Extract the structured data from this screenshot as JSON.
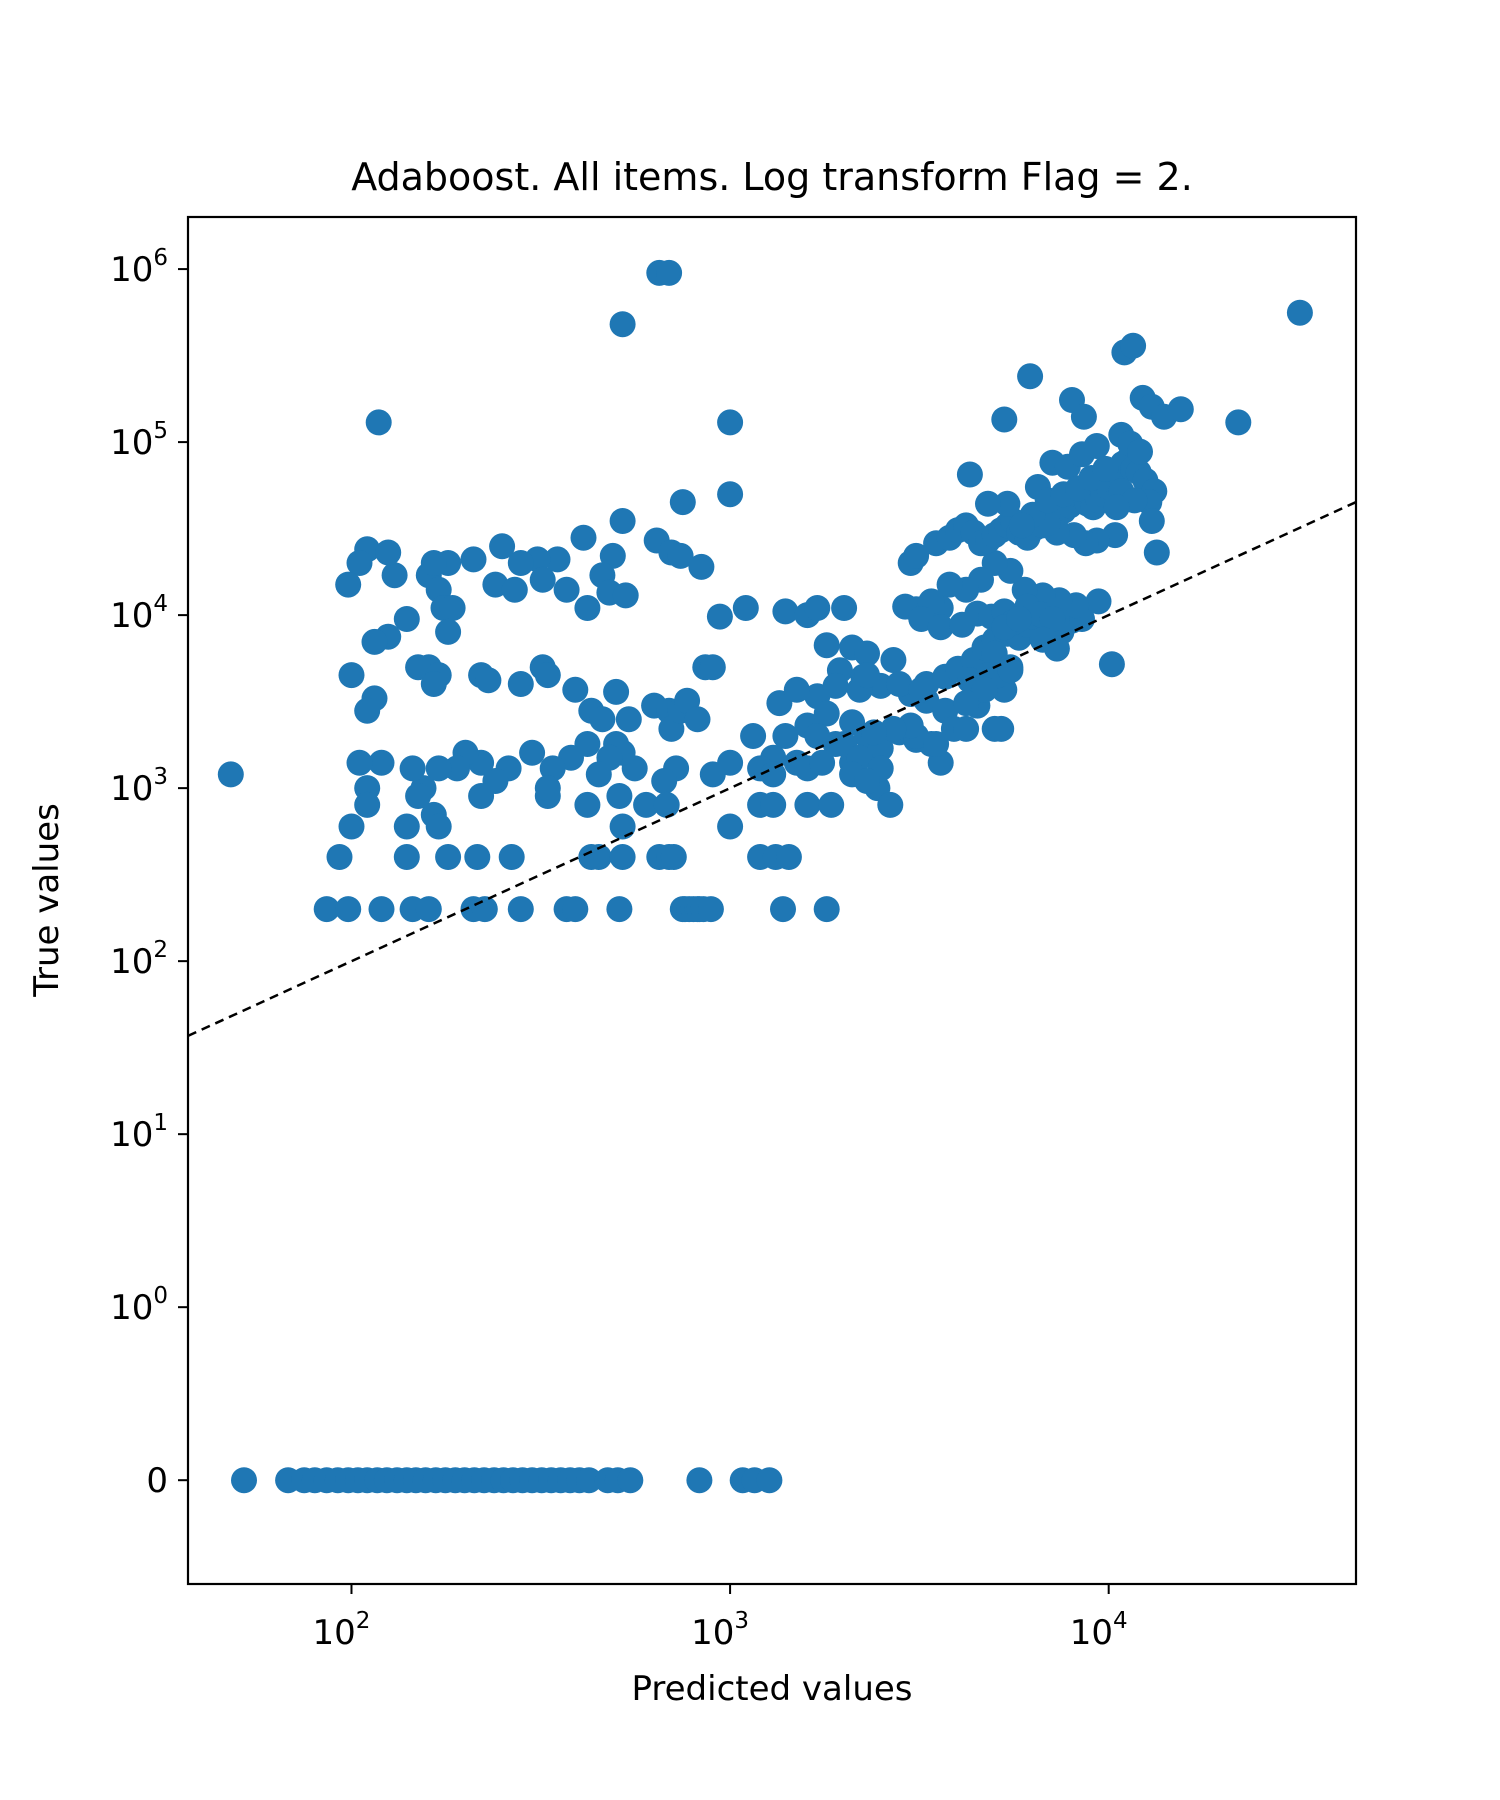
{
  "chart_data": {
    "type": "scatter",
    "title": "Adaboost. All items. Log transform Flag = 2.",
    "xlabel": "Predicted values",
    "ylabel": "True values",
    "xscale": "log",
    "yscale": "symlog",
    "xlim": [
      37,
      45000
    ],
    "ylim": [
      -0.6,
      2000000
    ],
    "xticks": [
      {
        "base": "10",
        "exp": "2",
        "value": 100
      },
      {
        "base": "10",
        "exp": "3",
        "value": 1000
      },
      {
        "base": "10",
        "exp": "4",
        "value": 10000
      }
    ],
    "yticks": [
      {
        "base": "",
        "exp": "",
        "text": "0",
        "value": 0
      },
      {
        "base": "10",
        "exp": "0",
        "value": 1
      },
      {
        "base": "10",
        "exp": "1",
        "value": 10
      },
      {
        "base": "10",
        "exp": "2",
        "value": 100
      },
      {
        "base": "10",
        "exp": "3",
        "value": 1000
      },
      {
        "base": "10",
        "exp": "4",
        "value": 10000
      },
      {
        "base": "10",
        "exp": "5",
        "value": 100000
      },
      {
        "base": "10",
        "exp": "6",
        "value": 1000000
      }
    ],
    "grid": false,
    "marker_color": "#1f77b4",
    "reference_line": {
      "style": "dashed",
      "color": "#000000",
      "description": "y = x"
    },
    "points": [
      [
        48,
        1200
      ],
      [
        118,
        130000
      ],
      [
        520,
        480000
      ],
      [
        650,
        950000
      ],
      [
        690,
        950000
      ],
      [
        1000,
        130000
      ],
      [
        520,
        35000
      ],
      [
        1000,
        50000
      ],
      [
        750,
        45000
      ],
      [
        640,
        27000
      ],
      [
        700,
        23000
      ],
      [
        740,
        22000
      ],
      [
        840,
        19000
      ],
      [
        410,
        28000
      ],
      [
        490,
        22000
      ],
      [
        460,
        17000
      ],
      [
        480,
        13500
      ],
      [
        530,
        13000
      ],
      [
        350,
        21000
      ],
      [
        310,
        21000
      ],
      [
        370,
        14000
      ],
      [
        420,
        11000
      ],
      [
        250,
        25000
      ],
      [
        280,
        20000
      ],
      [
        320,
        16000
      ],
      [
        240,
        15000
      ],
      [
        270,
        14000
      ],
      [
        210,
        21000
      ],
      [
        180,
        20000
      ],
      [
        160,
        17000
      ],
      [
        130,
        17000
      ],
      [
        110,
        24000
      ],
      [
        125,
        23000
      ],
      [
        105,
        20000
      ],
      [
        98,
        15000
      ],
      [
        165,
        20000
      ],
      [
        170,
        14000
      ],
      [
        175,
        11000
      ],
      [
        185,
        11000
      ],
      [
        140,
        9500
      ],
      [
        125,
        7500
      ],
      [
        115,
        7000
      ],
      [
        180,
        8000
      ],
      [
        160,
        5000
      ],
      [
        150,
        5000
      ],
      [
        170,
        4500
      ],
      [
        165,
        4000
      ],
      [
        100,
        4500
      ],
      [
        115,
        3300
      ],
      [
        110,
        2800
      ],
      [
        220,
        4500
      ],
      [
        230,
        4200
      ],
      [
        320,
        5000
      ],
      [
        330,
        4500
      ],
      [
        280,
        4000
      ],
      [
        390,
        3700
      ],
      [
        430,
        2800
      ],
      [
        460,
        2500
      ],
      [
        500,
        3600
      ],
      [
        540,
        2500
      ],
      [
        630,
        3000
      ],
      [
        690,
        2800
      ],
      [
        700,
        2200
      ],
      [
        740,
        2800
      ],
      [
        770,
        3200
      ],
      [
        820,
        2500
      ],
      [
        860,
        5000
      ],
      [
        900,
        5000
      ],
      [
        940,
        9800
      ],
      [
        1100,
        11000
      ],
      [
        1400,
        10500
      ],
      [
        1600,
        10000
      ],
      [
        1700,
        11000
      ],
      [
        2000,
        11000
      ],
      [
        1800,
        6700
      ],
      [
        2100,
        6500
      ],
      [
        2300,
        6000
      ],
      [
        2700,
        5500
      ],
      [
        1950,
        4800
      ],
      [
        2250,
        4400
      ],
      [
        2500,
        3900
      ],
      [
        1700,
        3400
      ],
      [
        1900,
        3900
      ],
      [
        2200,
        3700
      ],
      [
        2100,
        2400
      ],
      [
        2300,
        2000
      ],
      [
        2500,
        1700
      ],
      [
        2800,
        2100
      ],
      [
        3100,
        1900
      ],
      [
        3400,
        1800
      ],
      [
        1350,
        3100
      ],
      [
        1500,
        3700
      ],
      [
        1600,
        2300
      ],
      [
        1800,
        2700
      ],
      [
        1400,
        2000
      ],
      [
        1300,
        1500
      ],
      [
        1500,
        1400
      ],
      [
        1700,
        2000
      ],
      [
        1900,
        1800
      ],
      [
        2100,
        1400
      ],
      [
        1150,
        2000
      ],
      [
        1200,
        1300
      ],
      [
        1000,
        1400
      ],
      [
        900,
        1200
      ],
      [
        720,
        1300
      ],
      [
        670,
        1100
      ],
      [
        560,
        1300
      ],
      [
        520,
        1600
      ],
      [
        500,
        1800
      ],
      [
        480,
        1500
      ],
      [
        450,
        1200
      ],
      [
        420,
        1800
      ],
      [
        380,
        1500
      ],
      [
        340,
        1300
      ],
      [
        300,
        1600
      ],
      [
        260,
        1300
      ],
      [
        240,
        1100
      ],
      [
        220,
        1400
      ],
      [
        200,
        1600
      ],
      [
        190,
        1300
      ],
      [
        170,
        1300
      ],
      [
        155,
        1000
      ],
      [
        150,
        900
      ],
      [
        145,
        1300
      ],
      [
        120,
        1400
      ],
      [
        105,
        1400
      ],
      [
        110,
        1000
      ],
      [
        110,
        800
      ],
      [
        100,
        600
      ],
      [
        140,
        600
      ],
      [
        165,
        700
      ],
      [
        170,
        600
      ],
      [
        220,
        900
      ],
      [
        330,
        900
      ],
      [
        330,
        1000
      ],
      [
        420,
        800
      ],
      [
        510,
        900
      ],
      [
        520,
        600
      ],
      [
        600,
        800
      ],
      [
        680,
        800
      ],
      [
        1000,
        600
      ],
      [
        1200,
        800
      ],
      [
        1300,
        800
      ],
      [
        1600,
        800
      ],
      [
        1850,
        800
      ],
      [
        2450,
        1000
      ],
      [
        2650,
        800
      ],
      [
        3000,
        3500
      ],
      [
        3300,
        3200
      ],
      [
        3700,
        2800
      ],
      [
        3900,
        2200
      ],
      [
        4200,
        2200
      ],
      [
        5000,
        2200
      ],
      [
        5200,
        2200
      ],
      [
        4500,
        3000
      ],
      [
        3600,
        1400
      ],
      [
        3300,
        4000
      ],
      [
        3700,
        4400
      ],
      [
        4000,
        4900
      ],
      [
        4400,
        5500
      ],
      [
        4700,
        6500
      ],
      [
        5000,
        7200
      ],
      [
        5400,
        7800
      ],
      [
        5800,
        7400
      ],
      [
        6100,
        8800
      ],
      [
        6300,
        9800
      ],
      [
        7000,
        8300
      ],
      [
        7500,
        8000
      ],
      [
        8000,
        9300
      ],
      [
        8500,
        9500
      ],
      [
        9400,
        12000
      ],
      [
        8200,
        11400
      ],
      [
        7400,
        12200
      ],
      [
        6700,
        13000
      ],
      [
        6000,
        14000
      ],
      [
        5500,
        18000
      ],
      [
        5000,
        20000
      ],
      [
        4600,
        16000
      ],
      [
        4200,
        14000
      ],
      [
        3800,
        15000
      ],
      [
        3600,
        11000
      ],
      [
        3400,
        12000
      ],
      [
        3100,
        10800
      ],
      [
        2900,
        11200
      ],
      [
        3200,
        9500
      ],
      [
        3600,
        8500
      ],
      [
        4100,
        8800
      ],
      [
        4500,
        10200
      ],
      [
        4900,
        9800
      ],
      [
        5300,
        10500
      ],
      [
        5600,
        9100
      ],
      [
        6100,
        11200
      ],
      [
        6600,
        10100
      ],
      [
        7100,
        9500
      ],
      [
        3500,
        26000
      ],
      [
        3800,
        28000
      ],
      [
        4000,
        31000
      ],
      [
        4200,
        33000
      ],
      [
        4400,
        30000
      ],
      [
        4600,
        26000
      ],
      [
        4800,
        27000
      ],
      [
        5000,
        29000
      ],
      [
        5200,
        31000
      ],
      [
        5400,
        33000
      ],
      [
        5600,
        35000
      ],
      [
        5800,
        30000
      ],
      [
        6100,
        28000
      ],
      [
        6400,
        32000
      ],
      [
        6700,
        33000
      ],
      [
        7000,
        35000
      ],
      [
        7300,
        37000
      ],
      [
        7600,
        40000
      ],
      [
        7900,
        43000
      ],
      [
        8200,
        46000
      ],
      [
        8500,
        48000
      ],
      [
        8800,
        44000
      ],
      [
        9100,
        42000
      ],
      [
        9400,
        46000
      ],
      [
        9700,
        50000
      ],
      [
        10000,
        55000
      ],
      [
        10300,
        60000
      ],
      [
        10600,
        68000
      ],
      [
        10900,
        75000
      ],
      [
        11200,
        78000
      ],
      [
        11600,
        70000
      ],
      [
        12000,
        67000
      ],
      [
        12500,
        60000
      ],
      [
        13200,
        52000
      ],
      [
        12800,
        45000
      ],
      [
        13000,
        35000
      ],
      [
        13400,
        23000
      ],
      [
        10400,
        29000
      ],
      [
        9300,
        27000
      ],
      [
        8700,
        26000
      ],
      [
        8100,
        29000
      ],
      [
        7300,
        30000
      ],
      [
        6900,
        34000
      ],
      [
        6300,
        38000
      ],
      [
        5900,
        33000
      ],
      [
        5400,
        44000
      ],
      [
        4800,
        44000
      ],
      [
        3000,
        20000
      ],
      [
        3100,
        22000
      ],
      [
        4300,
        65000
      ],
      [
        5300,
        135000
      ],
      [
        6200,
        240000
      ],
      [
        8000,
        175000
      ],
      [
        8600,
        140000
      ],
      [
        11000,
        330000
      ],
      [
        11600,
        360000
      ],
      [
        12300,
        180000
      ],
      [
        13000,
        160000
      ],
      [
        14000,
        140000
      ],
      [
        15500,
        155000
      ],
      [
        22000,
        130000
      ],
      [
        32000,
        560000
      ],
      [
        6500,
        55000
      ],
      [
        7100,
        76000
      ],
      [
        7800,
        72000
      ],
      [
        8500,
        85000
      ],
      [
        9300,
        95000
      ],
      [
        10800,
        110000
      ],
      [
        11400,
        98000
      ],
      [
        12100,
        88000
      ],
      [
        6900,
        46000
      ],
      [
        7600,
        50000
      ],
      [
        8300,
        54000
      ],
      [
        9000,
        62000
      ],
      [
        9800,
        70000
      ],
      [
        10800,
        52000
      ],
      [
        11700,
        46000
      ],
      [
        10500,
        42000
      ],
      [
        3100,
        2000
      ],
      [
        3500,
        1800
      ],
      [
        5000,
        6000
      ],
      [
        5500,
        5000
      ],
      [
        4300,
        4200
      ],
      [
        4800,
        4500
      ],
      [
        2800,
        4000
      ],
      [
        3200,
        3700
      ],
      [
        10200,
        5200
      ],
      [
        7300,
        6400
      ],
      [
        6700,
        7200
      ],
      [
        5300,
        8500
      ],
      [
        5800,
        9500
      ],
      [
        5300,
        3700
      ],
      [
        5100,
        4500
      ],
      [
        5500,
        4800
      ],
      [
        4700,
        3700
      ],
      [
        4200,
        3100
      ],
      [
        3000,
        2300
      ],
      [
        2700,
        2200
      ],
      [
        2400,
        2100
      ],
      [
        2000,
        1800
      ],
      [
        2200,
        1500
      ],
      [
        2500,
        1300
      ],
      [
        2100,
        1200
      ],
      [
        2300,
        1100
      ],
      [
        1600,
        1300
      ],
      [
        1300,
        1200
      ],
      [
        2300,
        4500
      ],
      [
        1750,
        1400
      ],
      [
        86,
        200
      ],
      [
        98,
        200
      ],
      [
        120,
        200
      ],
      [
        145,
        200
      ],
      [
        160,
        200
      ],
      [
        210,
        200
      ],
      [
        225,
        200
      ],
      [
        280,
        200
      ],
      [
        370,
        200
      ],
      [
        390,
        200
      ],
      [
        510,
        200
      ],
      [
        750,
        200
      ],
      [
        760,
        200
      ],
      [
        780,
        200
      ],
      [
        800,
        200
      ],
      [
        820,
        200
      ],
      [
        830,
        200
      ],
      [
        850,
        200
      ],
      [
        890,
        200
      ],
      [
        1380,
        200
      ],
      [
        1800,
        200
      ],
      [
        93,
        400
      ],
      [
        140,
        400
      ],
      [
        180,
        400
      ],
      [
        215,
        400
      ],
      [
        265,
        400
      ],
      [
        430,
        400
      ],
      [
        450,
        400
      ],
      [
        520,
        400
      ],
      [
        650,
        400
      ],
      [
        690,
        400
      ],
      [
        710,
        400
      ],
      [
        1200,
        400
      ],
      [
        1320,
        400
      ],
      [
        1430,
        400
      ],
      [
        52,
        0
      ],
      [
        68,
        0
      ],
      [
        75,
        0
      ],
      [
        80,
        0
      ],
      [
        86,
        0
      ],
      [
        92,
        0
      ],
      [
        98,
        0
      ],
      [
        104,
        0
      ],
      [
        110,
        0
      ],
      [
        117,
        0
      ],
      [
        124,
        0
      ],
      [
        132,
        0
      ],
      [
        140,
        0
      ],
      [
        148,
        0
      ],
      [
        157,
        0
      ],
      [
        167,
        0
      ],
      [
        177,
        0
      ],
      [
        188,
        0
      ],
      [
        199,
        0
      ],
      [
        211,
        0
      ],
      [
        224,
        0
      ],
      [
        238,
        0
      ],
      [
        252,
        0
      ],
      [
        267,
        0
      ],
      [
        283,
        0
      ],
      [
        300,
        0
      ],
      [
        318,
        0
      ],
      [
        337,
        0
      ],
      [
        357,
        0
      ],
      [
        378,
        0
      ],
      [
        400,
        0
      ],
      [
        424,
        0
      ],
      [
        475,
        0
      ],
      [
        505,
        0
      ],
      [
        545,
        0
      ],
      [
        830,
        0
      ],
      [
        1080,
        0
      ],
      [
        1160,
        0
      ],
      [
        1270,
        0
      ]
    ]
  }
}
